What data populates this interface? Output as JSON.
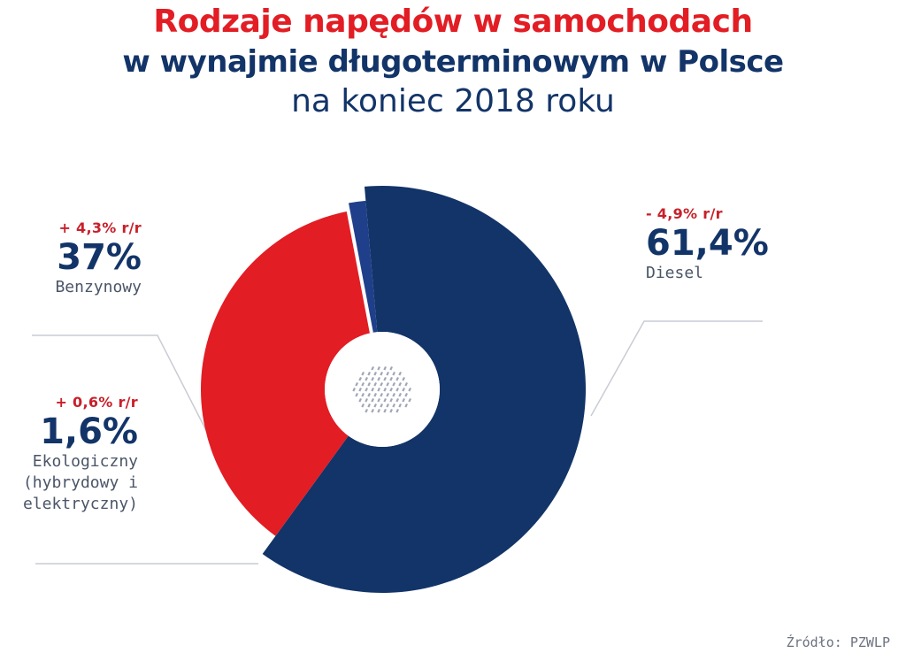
{
  "title": {
    "line1": "Rodzaje napędów w samochodach",
    "line2": "w wynajmie długoterminowym w Polsce",
    "line3": "na koniec 2018 roku"
  },
  "source": "Źródło: PZWLP",
  "colors": {
    "diesel": "#123468",
    "petrol": "#e21d24",
    "eco": "#1f3f8a",
    "title_red": "#e21d24",
    "navy": "#123468",
    "change_red": "#c8202a"
  },
  "chart_data": {
    "type": "pie",
    "style": "donut",
    "categories": [
      "Diesel",
      "Benzynowy",
      "Ekologiczny (hybrydowy i elektryczny)"
    ],
    "values": [
      61.4,
      37,
      1.6
    ],
    "labels": {
      "diesel": {
        "change": "- 4,9% r/r",
        "percent": "61,4%",
        "name": "Diesel"
      },
      "petrol": {
        "change": "+ 4,3% r/r",
        "percent": "37%",
        "name": "Benzynowy"
      },
      "eco": {
        "change": "+ 0,6% r/r",
        "percent": "1,6%",
        "name_lines": [
          "Ekologiczny",
          "(hybrydowy i",
          "elektryczny)"
        ]
      }
    },
    "legend": "none"
  }
}
